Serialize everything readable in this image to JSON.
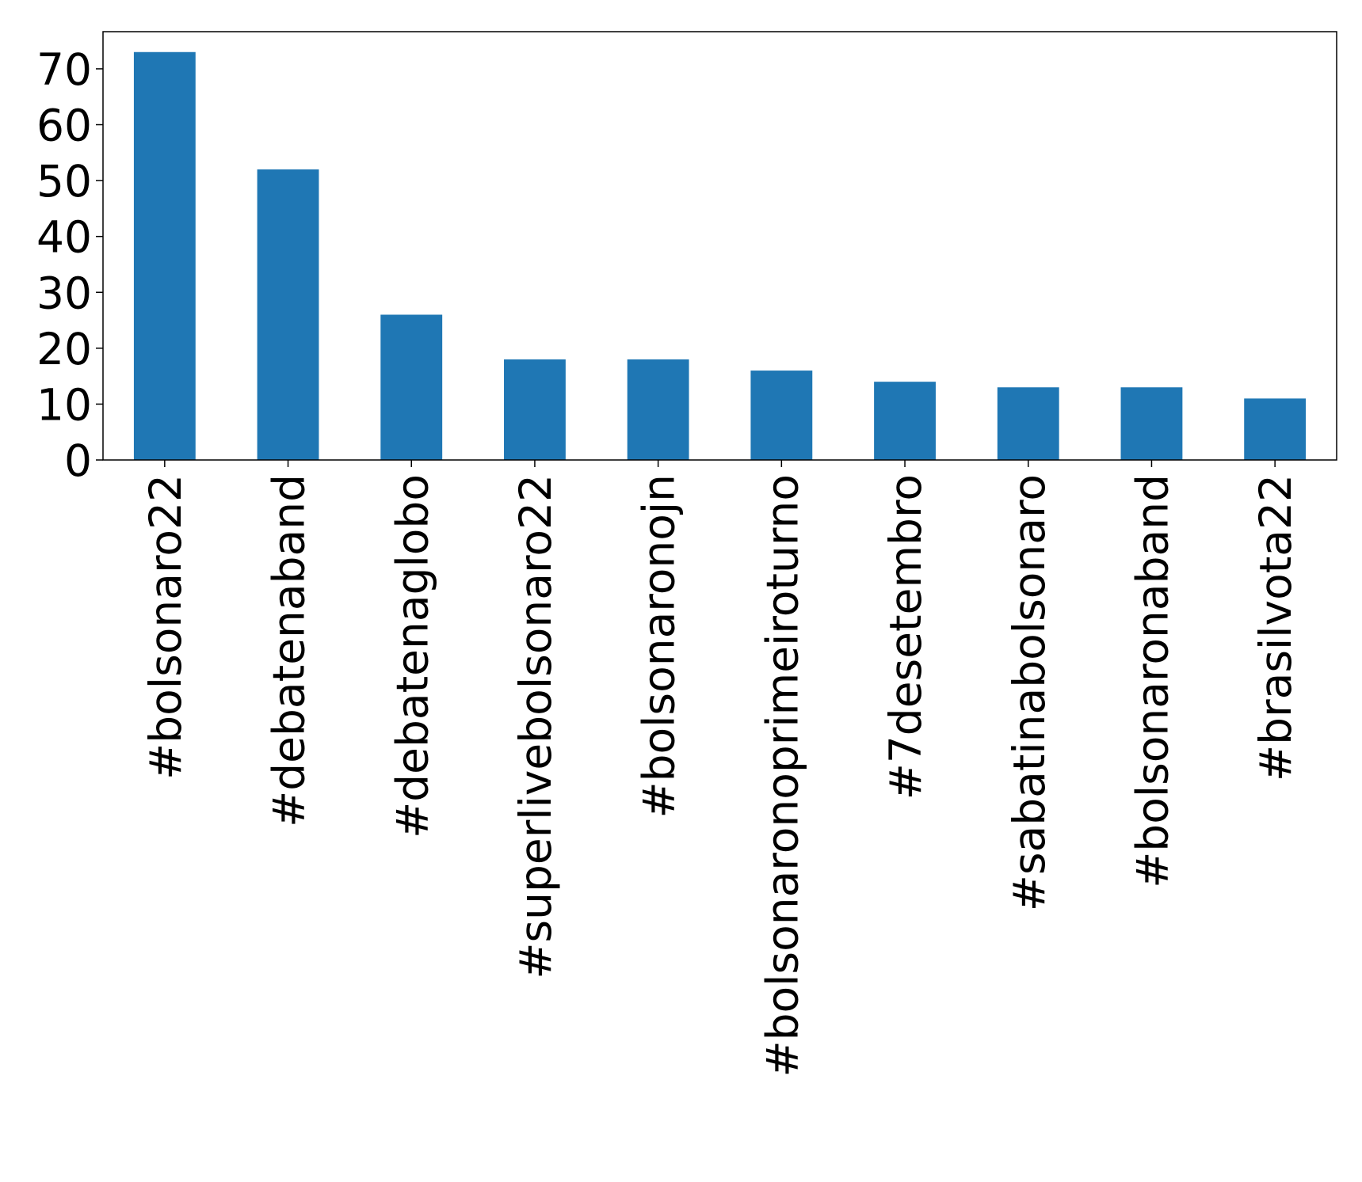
{
  "chart_data": {
    "type": "bar",
    "categories": [
      "#bolsonaro22",
      "#debatenaband",
      "#debatenaglobo",
      "#superlivebolsonaro22",
      "#bolsonaronojn",
      "#bolsonaronoprimeiroturno",
      "#7desetembro",
      "#sabatinabolsonaro",
      "#bolsonaronaband",
      "#brasilvota22"
    ],
    "values": [
      73,
      52,
      26,
      18,
      18,
      16,
      14,
      13,
      13,
      11
    ],
    "color": "#1f77b4",
    "ylim": [
      0,
      76.65
    ],
    "yticks": [
      0,
      10,
      20,
      30,
      40,
      50,
      60,
      70
    ],
    "grid": false
  }
}
